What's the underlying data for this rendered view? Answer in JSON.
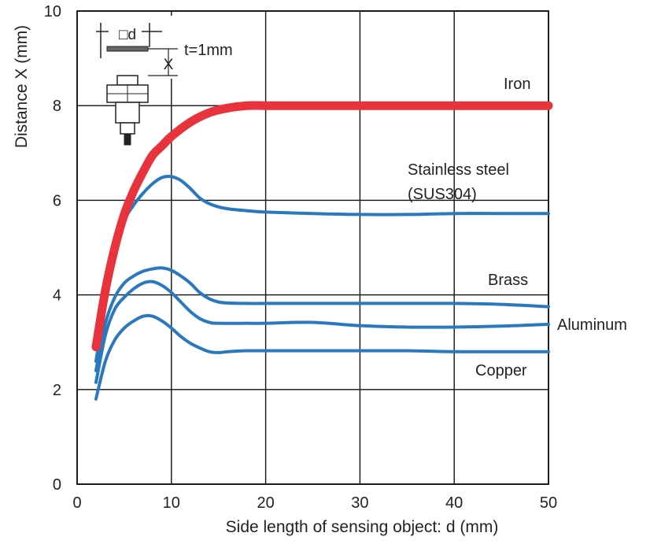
{
  "chart_data": {
    "type": "line",
    "xlabel": "Side length of sensing object: d (mm)",
    "ylabel": "Distance X (mm)",
    "xlim": [
      0,
      50
    ],
    "ylim": [
      0,
      10
    ],
    "x_ticks": [
      "0",
      "10",
      "20",
      "30",
      "40",
      "50"
    ],
    "y_ticks": [
      "0",
      "2",
      "4",
      "6",
      "8",
      "10"
    ],
    "grid": true,
    "series": [
      {
        "name": "Iron",
        "color": "#e8323c",
        "points": [
          [
            2,
            2.9
          ],
          [
            3,
            4.1
          ],
          [
            4,
            5.0
          ],
          [
            5,
            5.7
          ],
          [
            6,
            6.2
          ],
          [
            7,
            6.6
          ],
          [
            8,
            6.95
          ],
          [
            9,
            7.15
          ],
          [
            10,
            7.35
          ],
          [
            12,
            7.65
          ],
          [
            14,
            7.85
          ],
          [
            16,
            7.95
          ],
          [
            18,
            8.0
          ],
          [
            20,
            8.0
          ],
          [
            25,
            8.0
          ],
          [
            30,
            8.0
          ],
          [
            35,
            8.0
          ],
          [
            40,
            8.0
          ],
          [
            45,
            8.0
          ],
          [
            50,
            8.0
          ]
        ]
      },
      {
        "name": "Stainless steel (SUS304)",
        "color": "#2a78be",
        "points": [
          [
            2,
            2.6
          ],
          [
            3,
            3.8
          ],
          [
            4,
            4.8
          ],
          [
            5,
            5.55
          ],
          [
            6,
            5.9
          ],
          [
            7,
            6.15
          ],
          [
            8,
            6.35
          ],
          [
            9,
            6.48
          ],
          [
            10,
            6.5
          ],
          [
            11,
            6.42
          ],
          [
            12,
            6.25
          ],
          [
            13,
            6.05
          ],
          [
            14,
            5.93
          ],
          [
            15,
            5.86
          ],
          [
            16,
            5.82
          ],
          [
            18,
            5.78
          ],
          [
            20,
            5.75
          ],
          [
            25,
            5.72
          ],
          [
            30,
            5.7
          ],
          [
            35,
            5.7
          ],
          [
            40,
            5.72
          ],
          [
            45,
            5.72
          ],
          [
            50,
            5.72
          ]
        ]
      },
      {
        "name": "Brass",
        "color": "#2a78be",
        "points": [
          [
            2,
            2.4
          ],
          [
            3,
            3.4
          ],
          [
            4,
            3.95
          ],
          [
            5,
            4.25
          ],
          [
            6,
            4.4
          ],
          [
            7,
            4.5
          ],
          [
            8,
            4.55
          ],
          [
            9,
            4.57
          ],
          [
            10,
            4.52
          ],
          [
            11,
            4.4
          ],
          [
            12,
            4.25
          ],
          [
            13,
            4.05
          ],
          [
            14,
            3.92
          ],
          [
            15,
            3.85
          ],
          [
            16,
            3.83
          ],
          [
            18,
            3.82
          ],
          [
            20,
            3.82
          ],
          [
            25,
            3.82
          ],
          [
            30,
            3.82
          ],
          [
            35,
            3.82
          ],
          [
            40,
            3.82
          ],
          [
            45,
            3.8
          ],
          [
            50,
            3.75
          ]
        ]
      },
      {
        "name": "Aluminum",
        "color": "#2a78be",
        "points": [
          [
            2,
            2.15
          ],
          [
            3,
            3.15
          ],
          [
            4,
            3.7
          ],
          [
            5,
            3.95
          ],
          [
            6,
            4.13
          ],
          [
            7,
            4.25
          ],
          [
            8,
            4.28
          ],
          [
            9,
            4.2
          ],
          [
            10,
            4.05
          ],
          [
            11,
            3.85
          ],
          [
            12,
            3.65
          ],
          [
            13,
            3.5
          ],
          [
            14,
            3.42
          ],
          [
            15,
            3.4
          ],
          [
            18,
            3.4
          ],
          [
            20,
            3.4
          ],
          [
            25,
            3.42
          ],
          [
            30,
            3.35
          ],
          [
            35,
            3.32
          ],
          [
            40,
            3.32
          ],
          [
            45,
            3.34
          ],
          [
            50,
            3.38
          ]
        ]
      },
      {
        "name": "Copper",
        "color": "#2a78be",
        "points": [
          [
            2,
            1.8
          ],
          [
            3,
            2.6
          ],
          [
            4,
            3.05
          ],
          [
            5,
            3.3
          ],
          [
            6,
            3.45
          ],
          [
            7,
            3.55
          ],
          [
            8,
            3.55
          ],
          [
            9,
            3.45
          ],
          [
            10,
            3.3
          ],
          [
            11,
            3.12
          ],
          [
            12,
            2.98
          ],
          [
            13,
            2.88
          ],
          [
            14,
            2.8
          ],
          [
            15,
            2.78
          ],
          [
            16,
            2.8
          ],
          [
            18,
            2.82
          ],
          [
            20,
            2.82
          ],
          [
            25,
            2.82
          ],
          [
            30,
            2.82
          ],
          [
            35,
            2.82
          ],
          [
            40,
            2.8
          ],
          [
            45,
            2.8
          ],
          [
            50,
            2.8
          ]
        ]
      }
    ],
    "annotations": {
      "thickness": "t=1mm",
      "d_symbol": "□d",
      "x_symbol": "X"
    }
  }
}
